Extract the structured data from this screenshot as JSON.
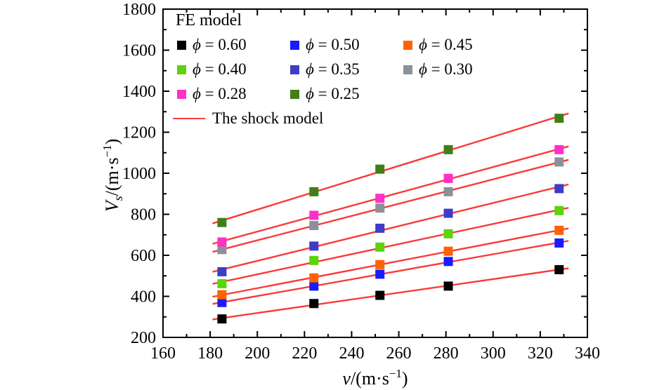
{
  "chart_data": {
    "type": "scatter",
    "title": "",
    "xlabel": "v/(m·s⁻¹)",
    "ylabel": "Vs/(m·s⁻¹)",
    "xlabel_parts": {
      "var": "v",
      "rest": "/(m·s",
      "sup": "−1",
      "close": ")"
    },
    "ylabel_parts": {
      "var": "V",
      "sub": "s",
      "rest": "/(m·s",
      "sup": "−1",
      "close": ")"
    },
    "xlim": [
      160,
      340
    ],
    "ylim": [
      200,
      1800
    ],
    "x_ticks": [
      160,
      180,
      200,
      220,
      240,
      260,
      280,
      300,
      320,
      340
    ],
    "y_ticks": [
      200,
      400,
      600,
      800,
      1000,
      1200,
      1400,
      1600,
      1800
    ],
    "x_minor_step": 10,
    "y_minor_step": 100,
    "grid": false,
    "legend_position": "top-left",
    "marker": "square",
    "marker_size": 13,
    "x": [
      185,
      224,
      252,
      281,
      328
    ],
    "series": [
      {
        "name": "ϕ = 0.60",
        "phi": "0.60",
        "color": "#000000",
        "values": [
          290,
          365,
          405,
          450,
          530
        ]
      },
      {
        "name": "ϕ = 0.50",
        "phi": "0.50",
        "color": "#1a1aff",
        "values": [
          370,
          450,
          508,
          570,
          660
        ]
      },
      {
        "name": "ϕ = 0.45",
        "phi": "0.45",
        "color": "#ff6200",
        "values": [
          408,
          490,
          555,
          620,
          722
        ]
      },
      {
        "name": "ϕ = 0.40",
        "phi": "0.40",
        "color": "#5bd40a",
        "values": [
          462,
          575,
          640,
          705,
          818
        ]
      },
      {
        "name": "ϕ = 0.35",
        "phi": "0.35",
        "color": "#3d3dc8",
        "values": [
          520,
          645,
          732,
          805,
          925
        ]
      },
      {
        "name": "ϕ = 0.30",
        "phi": "0.30",
        "color": "#8a9299",
        "values": [
          628,
          745,
          830,
          910,
          1055
        ]
      },
      {
        "name": "ϕ = 0.28",
        "phi": "0.28",
        "color": "#ff30c8",
        "values": [
          665,
          795,
          878,
          975,
          1115
        ]
      },
      {
        "name": "ϕ = 0.25",
        "phi": "0.25",
        "color": "#417f16",
        "values": [
          760,
          910,
          1020,
          1115,
          1268
        ]
      }
    ],
    "fit_line": {
      "label": "The shock model",
      "color": "#f93a3a",
      "x_range": [
        181,
        332
      ]
    }
  },
  "legend": {
    "title": "FE model",
    "symbol": "ϕ",
    "equals": " = ",
    "line_label": "The shock model",
    "line_color": "#f93a3a"
  }
}
